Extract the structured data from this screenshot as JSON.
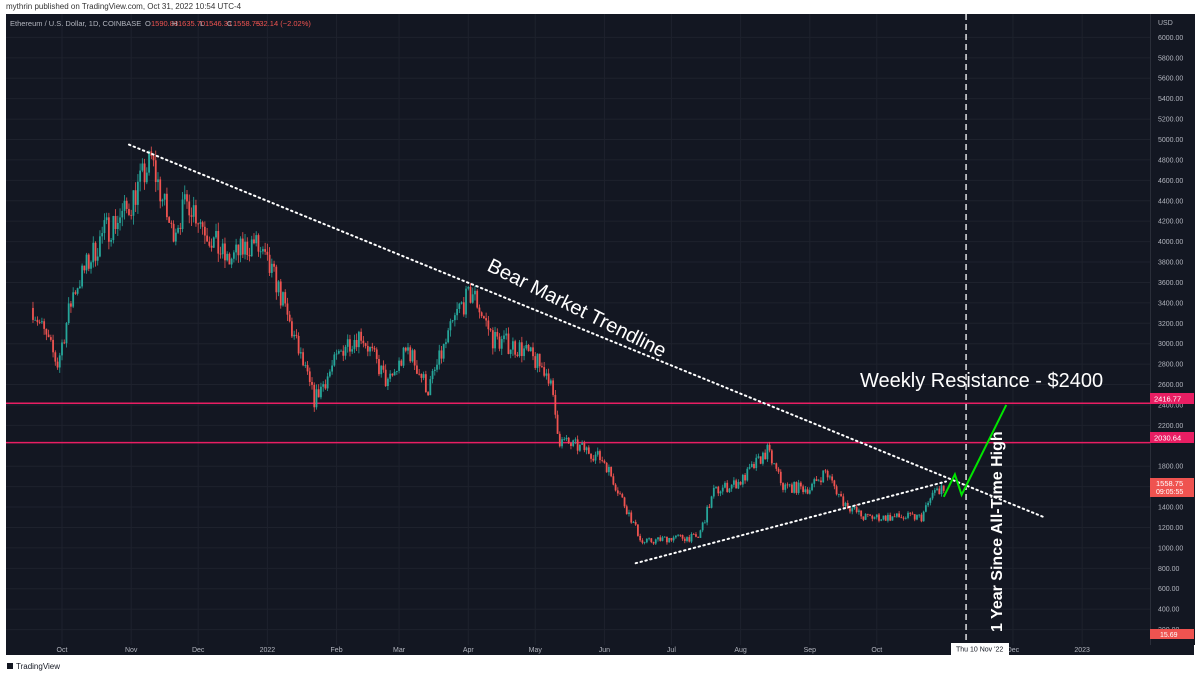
{
  "publish_line": "mythrin published on TradingView.com, Oct 31, 2022 10:54 UTC-4",
  "footer": {
    "logo_text": "TradingView"
  },
  "symbol": {
    "title": "Ethereum / U.S. Dollar, 1D, COINBASE",
    "open_label": "O",
    "open": "1590.88",
    "high_label": "H",
    "high": "1635.70",
    "low_label": "L",
    "low": "1546.31",
    "close_label": "C",
    "close": "1558.75",
    "change": "−32.14 (−2.02%)"
  },
  "colors": {
    "background": "#131722",
    "up": "#26a69a",
    "down": "#ef5350",
    "resistance": "#e91e63",
    "projection": "#00e600",
    "annotation": "#ffffff"
  },
  "price_axis": {
    "currency": "USD",
    "ticks": [
      "6000.00",
      "5800.00",
      "5600.00",
      "5400.00",
      "5200.00",
      "5000.00",
      "4800.00",
      "4600.00",
      "4400.00",
      "4200.00",
      "4000.00",
      "3800.00",
      "3600.00",
      "3400.00",
      "3200.00",
      "3000.00",
      "2800.00",
      "2600.00",
      "2400.00",
      "2200.00",
      "1800.00",
      "1600.00",
      "1400.00",
      "1200.00",
      "1000.00",
      "800.00",
      "600.00",
      "400.00",
      "200.00"
    ],
    "bottom_label": "15.69",
    "current_price": "1558.75",
    "countdown": "09:05:55",
    "resistance_labels": [
      "2416.77",
      "2030.64"
    ]
  },
  "time_axis": {
    "ticks": [
      "Oct",
      "Nov",
      "Dec",
      "2022",
      "Feb",
      "Mar",
      "Apr",
      "May",
      "Jun",
      "Jul",
      "Aug",
      "Sep",
      "Oct",
      "Dec",
      "2023"
    ],
    "cursor_label": "Thu 10 Nov '22"
  },
  "annotations": {
    "trendline": "Bear Market Trendline",
    "resistance": "Weekly Resistance - $2400",
    "vertical": "1 Year Since All-Time High"
  },
  "chart_data": {
    "type": "candlestick",
    "ylim": [
      0,
      6100
    ],
    "resistance_levels": [
      2416.77,
      2030.64
    ],
    "last_close": 1558.75,
    "anchors": [
      {
        "date": "2021-09-18",
        "price": 3350
      },
      {
        "date": "2021-09-29",
        "price": 2800
      },
      {
        "date": "2021-10-06",
        "price": 3500
      },
      {
        "date": "2021-10-20",
        "price": 4100
      },
      {
        "date": "2021-10-30",
        "price": 4300
      },
      {
        "date": "2021-11-10",
        "price": 4800
      },
      {
        "date": "2021-11-19",
        "price": 4100
      },
      {
        "date": "2021-11-27",
        "price": 4400
      },
      {
        "date": "2021-12-05",
        "price": 4100
      },
      {
        "date": "2021-12-14",
        "price": 3800
      },
      {
        "date": "2021-12-26",
        "price": 4000
      },
      {
        "date": "2022-01-05",
        "price": 3600
      },
      {
        "date": "2022-01-22",
        "price": 2450
      },
      {
        "date": "2022-02-05",
        "price": 3000
      },
      {
        "date": "2022-02-12",
        "price": 3100
      },
      {
        "date": "2022-02-24",
        "price": 2600
      },
      {
        "date": "2022-03-05",
        "price": 2950
      },
      {
        "date": "2022-03-14",
        "price": 2550
      },
      {
        "date": "2022-03-28",
        "price": 3350
      },
      {
        "date": "2022-04-03",
        "price": 3500
      },
      {
        "date": "2022-04-12",
        "price": 3050
      },
      {
        "date": "2022-04-25",
        "price": 2950
      },
      {
        "date": "2022-05-07",
        "price": 2700
      },
      {
        "date": "2022-05-12",
        "price": 2050
      },
      {
        "date": "2022-05-25",
        "price": 1950
      },
      {
        "date": "2022-06-01",
        "price": 1850
      },
      {
        "date": "2022-06-18",
        "price": 1050
      },
      {
        "date": "2022-07-01",
        "price": 1100
      },
      {
        "date": "2022-07-13",
        "price": 1100
      },
      {
        "date": "2022-07-20",
        "price": 1550
      },
      {
        "date": "2022-08-01",
        "price": 1650
      },
      {
        "date": "2022-08-13",
        "price": 1950
      },
      {
        "date": "2022-08-20",
        "price": 1600
      },
      {
        "date": "2022-09-01",
        "price": 1580
      },
      {
        "date": "2022-09-08",
        "price": 1750
      },
      {
        "date": "2022-09-16",
        "price": 1450
      },
      {
        "date": "2022-09-25",
        "price": 1300
      },
      {
        "date": "2022-10-10",
        "price": 1300
      },
      {
        "date": "2022-10-21",
        "price": 1300
      },
      {
        "date": "2022-10-26",
        "price": 1520
      },
      {
        "date": "2022-10-30",
        "price": 1600
      },
      {
        "date": "2022-10-31",
        "price": 1558.75
      }
    ],
    "bear_trendline": [
      {
        "date": "2021-10-31",
        "price": 4950
      },
      {
        "date": "2022-12-15",
        "price": 1300
      }
    ],
    "support_trendline": [
      {
        "date": "2022-06-15",
        "price": 850
      },
      {
        "date": "2022-11-01",
        "price": 1650
      }
    ],
    "projection": [
      {
        "date": "2022-10-31",
        "price": 1500
      },
      {
        "date": "2022-11-05",
        "price": 1720
      },
      {
        "date": "2022-11-08",
        "price": 1520
      },
      {
        "date": "2022-11-28",
        "price": 2400
      }
    ],
    "vertical_marker_date": "2022-11-10"
  }
}
